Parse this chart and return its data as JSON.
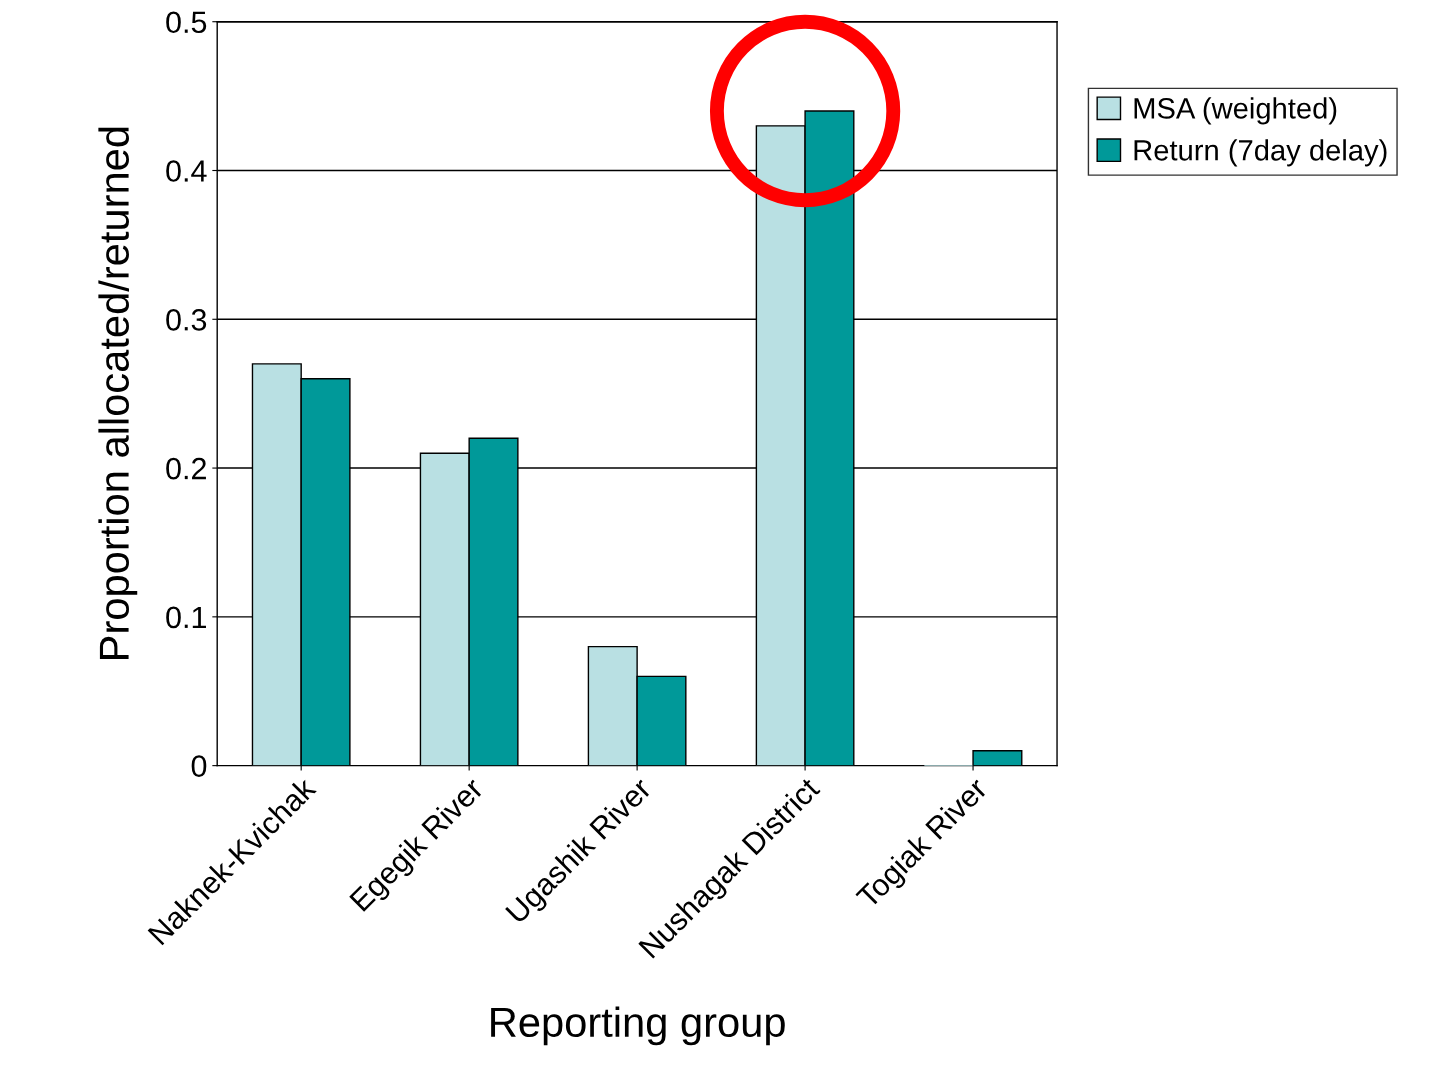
{
  "chart_data": {
    "type": "bar",
    "xlabel": "Reporting group",
    "ylabel": "Proportion allocated/returned",
    "categories": [
      "Naknek-Kvichak",
      "Egegik River",
      "Ugashik River",
      "Nushagak District",
      "Togiak River"
    ],
    "series": [
      {
        "name": "MSA (weighted)",
        "color": "#b9e0e3",
        "values": [
          0.27,
          0.21,
          0.08,
          0.43,
          0.0
        ]
      },
      {
        "name": "Return (7day delay)",
        "color": "#009999",
        "values": [
          0.26,
          0.22,
          0.06,
          0.44,
          0.01
        ]
      }
    ],
    "ylim": [
      0,
      0.5
    ],
    "yticks": [
      0,
      0.1,
      0.2,
      0.3,
      0.4,
      0.5
    ],
    "grid": "y",
    "legend": "top right"
  }
}
